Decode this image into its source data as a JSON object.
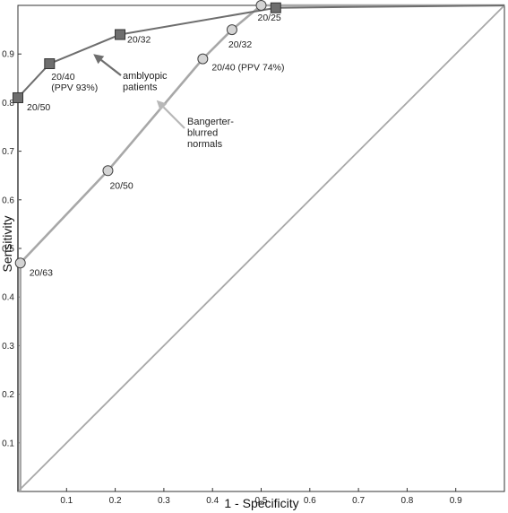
{
  "chart_data": {
    "type": "line",
    "title": "",
    "xlabel": "1 - Specificity",
    "ylabel": "Sensitivity",
    "xlim": [
      0,
      1
    ],
    "ylim": [
      0,
      1
    ],
    "x_ticks": [
      "0.1",
      "0.2",
      "0.3",
      "0.4",
      "0.5",
      "0.6",
      "0.7",
      "0.8",
      "0.9"
    ],
    "y_ticks": [
      "0.1",
      "0.2",
      "0.3",
      "0.4",
      "0.5",
      "0.6",
      "0.7",
      "0.8",
      "0.9"
    ],
    "grid": false,
    "legend": "none",
    "series": [
      {
        "name": "amblyopic patients",
        "color": "#6e6e6e",
        "marker": "square",
        "points": [
          {
            "x": 0,
            "y": 0,
            "label": ""
          },
          {
            "x": 0,
            "y": 0.81,
            "label": "20/50"
          },
          {
            "x": 0.065,
            "y": 0.88,
            "label": "20/40\n(PPV 93%)"
          },
          {
            "x": 0.21,
            "y": 0.94,
            "label": "20/32"
          },
          {
            "x": 0.53,
            "y": 0.995,
            "label": ""
          },
          {
            "x": 1,
            "y": 1,
            "label": ""
          }
        ]
      },
      {
        "name": "Bangerter-blurred normals",
        "color": "#a8a8a8",
        "marker": "circle",
        "points": [
          {
            "x": 0.005,
            "y": 0,
            "label": ""
          },
          {
            "x": 0.005,
            "y": 0.47,
            "label": "20/63"
          },
          {
            "x": 0.185,
            "y": 0.66,
            "label": "20/50"
          },
          {
            "x": 0.38,
            "y": 0.89,
            "label": "20/40 (PPV 74%)"
          },
          {
            "x": 0.44,
            "y": 0.95,
            "label": "20/32"
          },
          {
            "x": 0.5,
            "y": 1.0,
            "label": "20/25"
          },
          {
            "x": 1,
            "y": 1,
            "label": ""
          }
        ]
      }
    ],
    "annotations": [
      {
        "text": "amblyopic\npatients",
        "series": "amblyopic patients",
        "arrow_to": {
          "x": 0.155,
          "y": 0.9
        }
      },
      {
        "text": "Bangerter-\nblurred\nnormals",
        "series": "Bangerter-blurred normals",
        "arrow_to": {
          "x": 0.285,
          "y": 0.805
        }
      }
    ],
    "diagonal": {
      "from": [
        0,
        0
      ],
      "to": [
        1,
        1
      ],
      "color": "#a8a8a8"
    }
  }
}
